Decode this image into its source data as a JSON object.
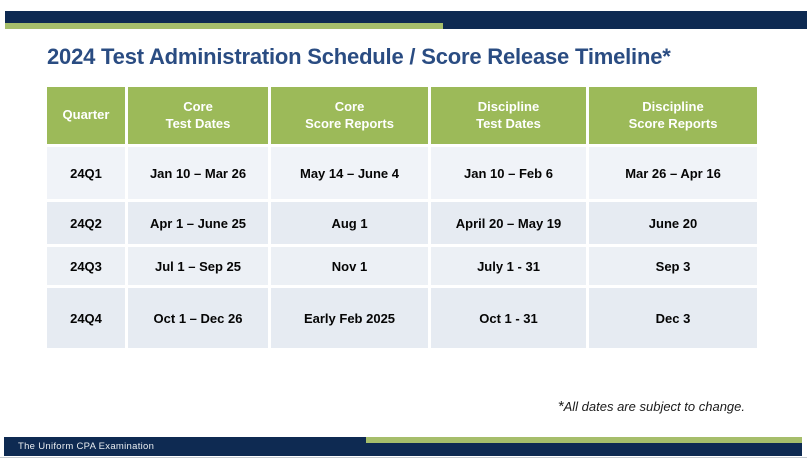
{
  "slide": {
    "title": "2024 Test Administration Schedule / Score Release Timeline*",
    "footnote": {
      "star": "*",
      "text": "All dates are subject to change."
    },
    "footer": {
      "brand": "The Uniform CPA Examination"
    }
  },
  "colors": {
    "navy": "#0E2A52",
    "stripe_green": "#A6BE6B",
    "header_green": "#9CBA59",
    "title_blue": "#2A4C82",
    "row_light": "#f0f3f8",
    "row_shaded": "#e6ebf2"
  },
  "table": {
    "headers": [
      {
        "line1": "Quarter",
        "line2": ""
      },
      {
        "line1": "Core",
        "line2": "Test Dates"
      },
      {
        "line1": "Core",
        "line2": "Score Reports"
      },
      {
        "line1": "Discipline",
        "line2": "Test Dates"
      },
      {
        "line1": "Discipline",
        "line2": "Score Reports"
      }
    ],
    "rows": [
      {
        "cells": [
          "24Q1",
          "Jan 10 – Mar 26",
          "May 14 – June 4",
          "Jan 10 – Feb 6",
          "Mar 26 – Apr 16"
        ]
      },
      {
        "cells": [
          "24Q2",
          "Apr 1 – June 25",
          "Aug 1",
          "April 20 – May 19",
          "June 20"
        ]
      },
      {
        "cells": [
          "24Q3",
          "Jul 1 – Sep 25",
          "Nov 1",
          "July 1 - 31",
          "Sep 3"
        ]
      },
      {
        "cells": [
          "24Q4",
          "Oct 1 – Dec 26",
          "Early Feb 2025",
          "Oct 1 - 31",
          "Dec 3"
        ]
      }
    ]
  }
}
